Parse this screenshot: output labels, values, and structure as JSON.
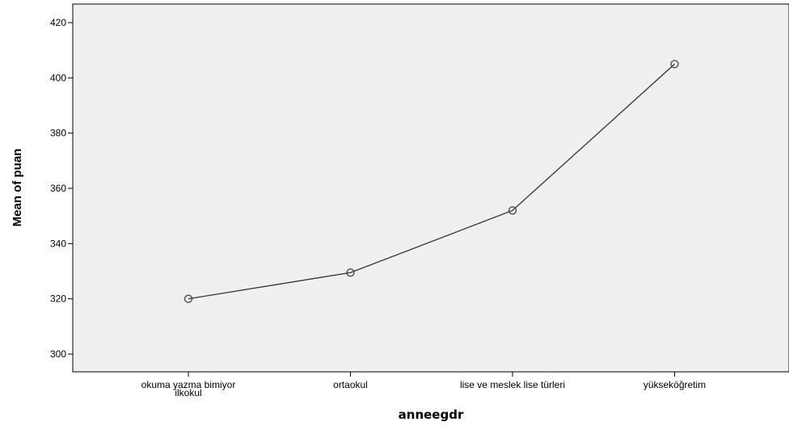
{
  "chart_data": {
    "type": "line",
    "xlabel": "anneegdr",
    "ylabel": "Mean of puan",
    "categories": [
      [
        "okuma yazma bimiyor",
        "ilkokul"
      ],
      [
        "ortaokul"
      ],
      [
        "lise ve meslek lise türleri"
      ],
      [
        "yükseköğretim"
      ]
    ],
    "values": [
      320,
      329.5,
      352,
      405
    ],
    "ylim": [
      295,
      425
    ],
    "yticks": [
      300,
      320,
      340,
      360,
      380,
      400,
      420
    ],
    "grid": false,
    "legend": "none",
    "colors": {
      "plot_background": "#f0f0f0",
      "line": "#333333",
      "marker": "#444444"
    }
  }
}
